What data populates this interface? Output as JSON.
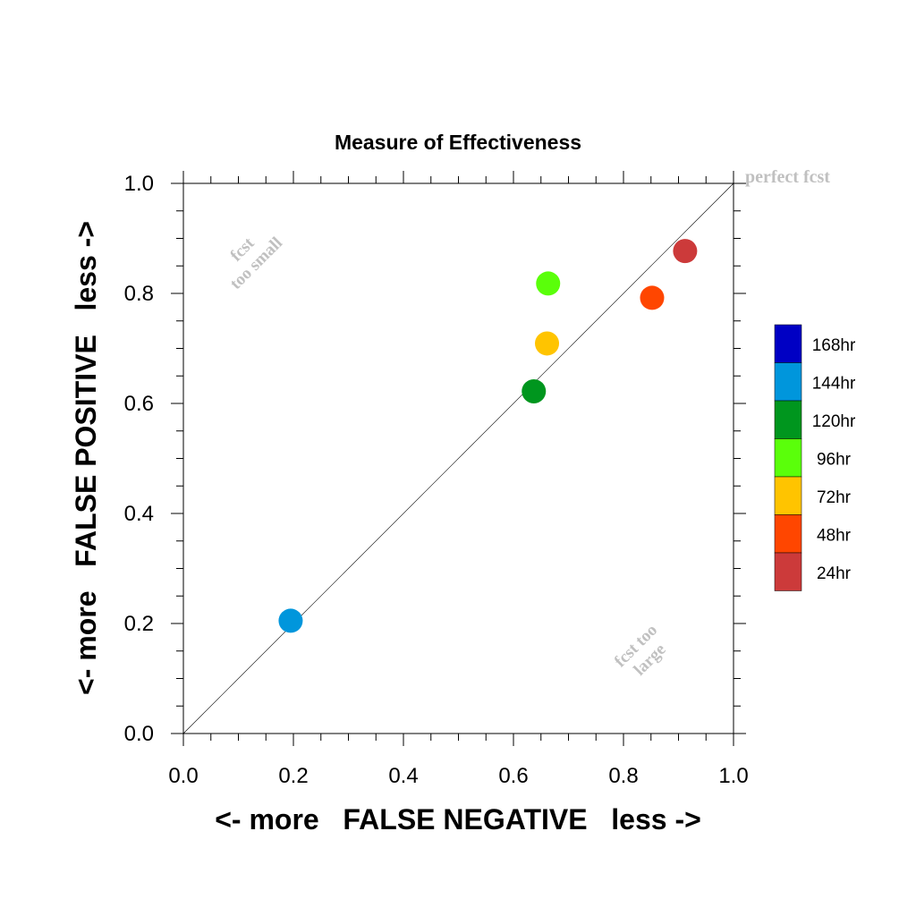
{
  "chart_data": {
    "type": "scatter",
    "title": "Measure of Effectiveness",
    "xlabel": "<- more   FALSE NEGATIVE   less ->",
    "ylabel": "<- more   FALSE POSITIVE   less ->",
    "xlim": [
      0.0,
      1.0
    ],
    "ylim": [
      0.0,
      1.0
    ],
    "xticks": [
      "0.0",
      "0.2",
      "0.4",
      "0.6",
      "0.8",
      "1.0"
    ],
    "yticks": [
      "0.0",
      "0.2",
      "0.4",
      "0.6",
      "0.8",
      "1.0"
    ],
    "grid": false,
    "reference_line": {
      "from": [
        0.0,
        0.0
      ],
      "to": [
        1.0,
        1.0
      ]
    },
    "annotations": {
      "diagonal_end": "perfect fcst",
      "upper_left": [
        "fcst",
        "too small"
      ],
      "lower_right": [
        "fcst too",
        "large"
      ]
    },
    "legend": {
      "placement": "right",
      "entries": [
        {
          "label": "168hr",
          "color": "#0000c4"
        },
        {
          "label": "144hr",
          "color": "#0096dc"
        },
        {
          "label": "120hr",
          "color": "#00961e"
        },
        {
          "label": "96hr",
          "color": "#5aff0a"
        },
        {
          "label": "72hr",
          "color": "#ffc400"
        },
        {
          "label": "48hr",
          "color": "#ff4600"
        },
        {
          "label": "24hr",
          "color": "#cc3a3a"
        }
      ]
    },
    "series": [
      {
        "name": "144hr",
        "color": "#0096dc",
        "x": 0.195,
        "y": 0.205
      },
      {
        "name": "120hr",
        "color": "#00961e",
        "x": 0.637,
        "y": 0.622
      },
      {
        "name": "96hr",
        "color": "#5aff0a",
        "x": 0.663,
        "y": 0.818
      },
      {
        "name": "72hr",
        "color": "#ffc400",
        "x": 0.661,
        "y": 0.709
      },
      {
        "name": "48hr",
        "color": "#ff4600",
        "x": 0.852,
        "y": 0.792
      },
      {
        "name": "24hr",
        "color": "#cc3a3a",
        "x": 0.912,
        "y": 0.877
      }
    ]
  }
}
